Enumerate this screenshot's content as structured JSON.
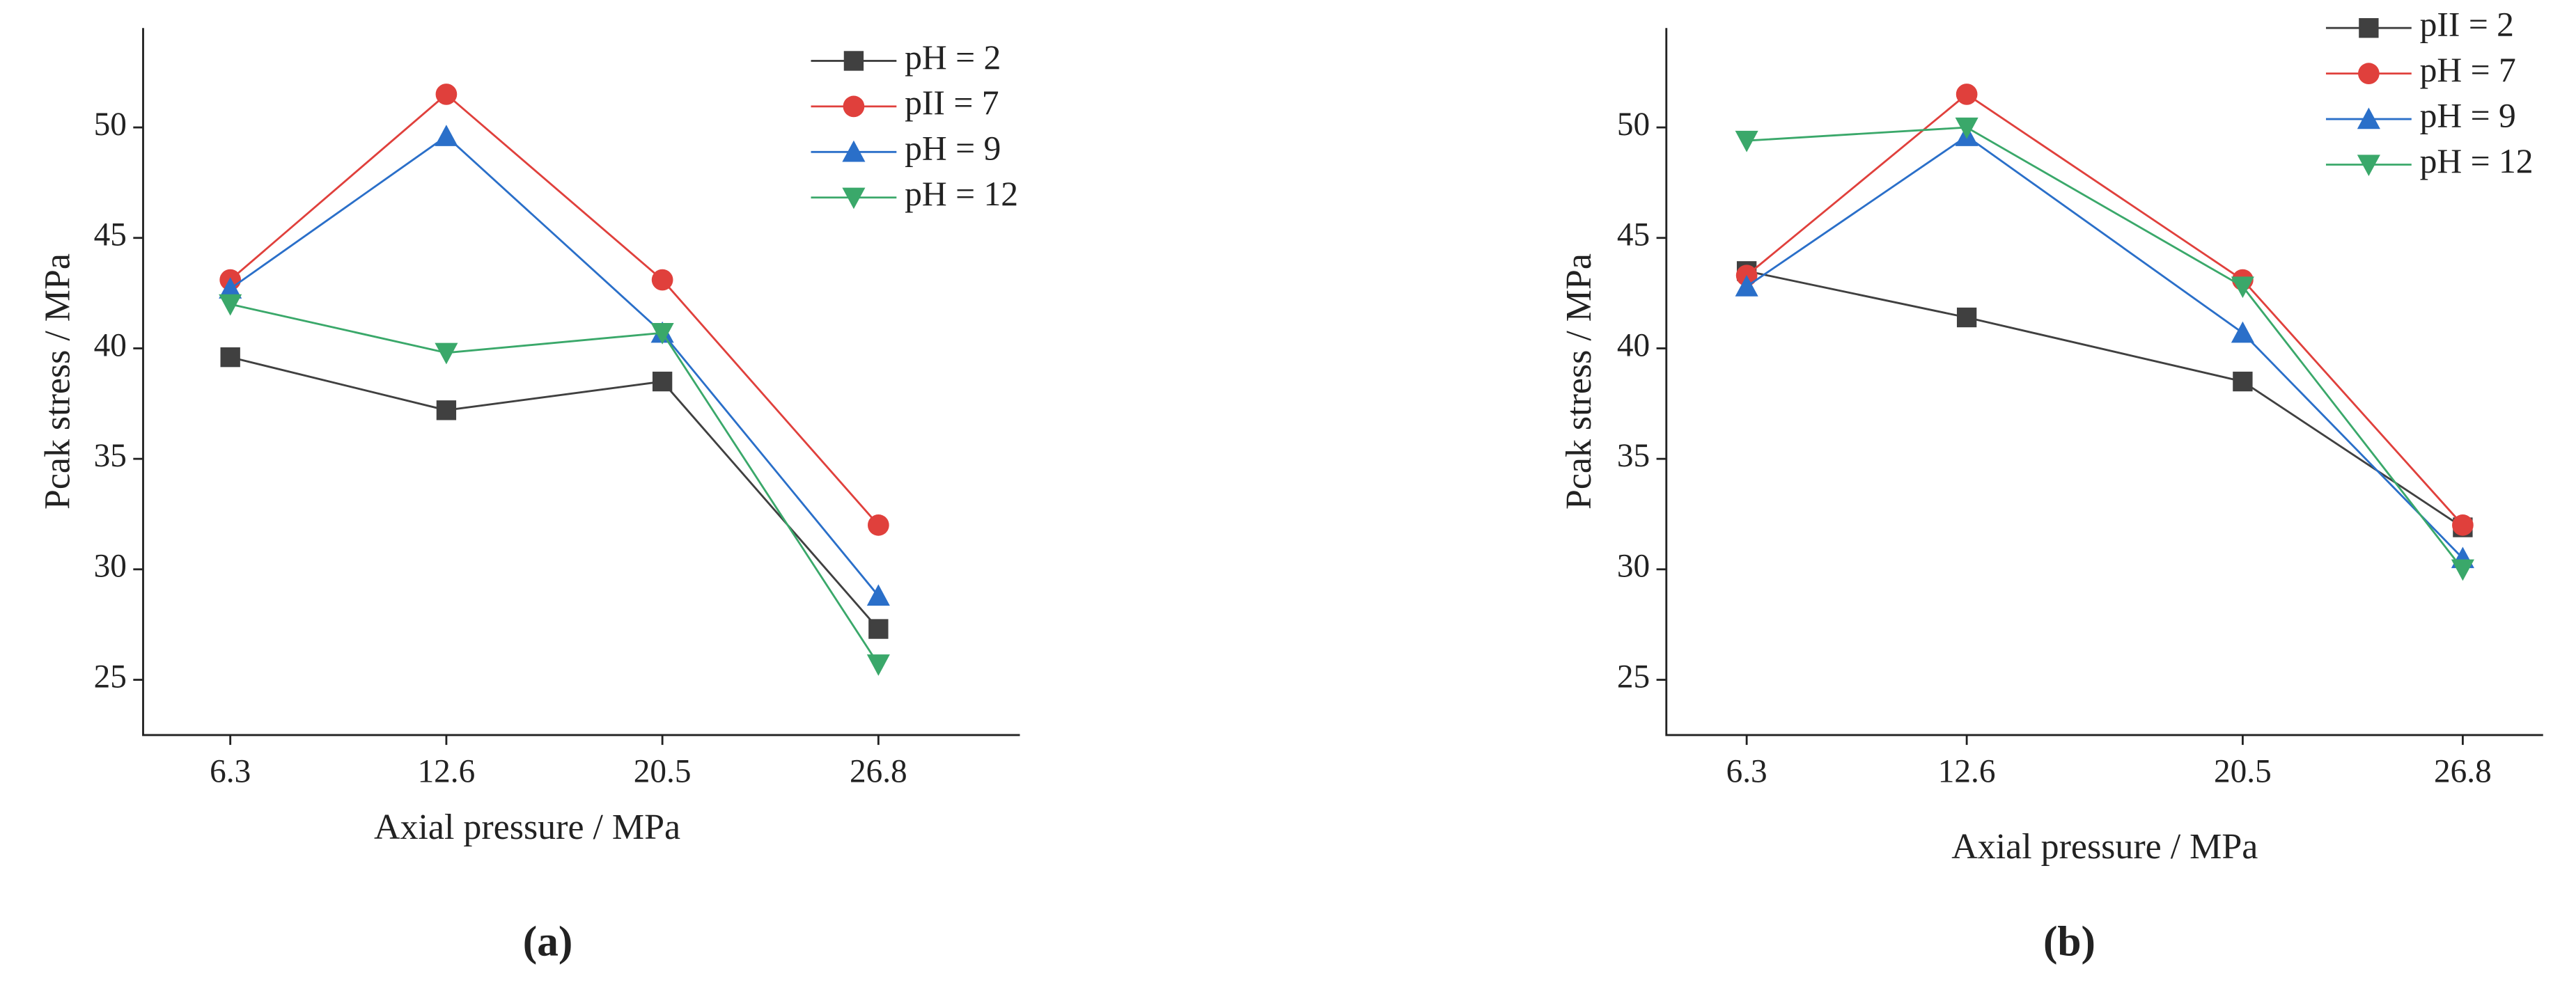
{
  "chart_data": [
    {
      "type": "line",
      "caption": "(a)",
      "x_label": "Axial pressure / MPa",
      "y_label": "Pcak stress / MPa",
      "categories": [
        "6.3",
        "12.6",
        "20.5",
        "26.8"
      ],
      "ylim": [
        22.5,
        54.5
      ],
      "yticks": [
        25,
        30,
        35,
        40,
        45,
        50
      ],
      "legend": "upper right",
      "series": [
        {
          "name": "pH = 2",
          "color": "#404040",
          "marker": "square",
          "values": [
            39.6,
            37.2,
            38.5,
            27.3
          ]
        },
        {
          "name": "pII = 7",
          "color": "#e0403c",
          "marker": "circle",
          "values": [
            43.1,
            51.5,
            43.1,
            32.0
          ]
        },
        {
          "name": "pH = 9",
          "color": "#2a6fc9",
          "marker": "triangle-up",
          "values": [
            42.7,
            49.6,
            40.7,
            28.8
          ]
        },
        {
          "name": "pH = 12",
          "color": "#3aa86a",
          "marker": "triangle-down",
          "values": [
            42.0,
            39.8,
            40.7,
            25.7
          ]
        }
      ]
    },
    {
      "type": "line",
      "caption": "(b)",
      "x_label": "Axial pressure / MPa",
      "y_label": "Pcak stress / MPa",
      "x": [
        6.3,
        12.6,
        20.5,
        26.8
      ],
      "xlim": [
        4.0,
        29.1
      ],
      "xticks": [
        6.3,
        12.6,
        20.5,
        26.8
      ],
      "ylim": [
        22.5,
        54.5
      ],
      "yticks": [
        25,
        30,
        35,
        40,
        45,
        50
      ],
      "legend": "upper right",
      "series": [
        {
          "name": "pII = 2",
          "color": "#404040",
          "marker": "square",
          "values": [
            43.5,
            41.4,
            38.5,
            31.9
          ]
        },
        {
          "name": "pH = 7",
          "color": "#e0403c",
          "marker": "circle",
          "values": [
            43.3,
            51.5,
            43.1,
            32.0
          ]
        },
        {
          "name": "pH = 9",
          "color": "#2a6fc9",
          "marker": "triangle-up",
          "values": [
            42.8,
            49.6,
            40.7,
            30.5
          ]
        },
        {
          "name": "pH = 12",
          "color": "#3aa86a",
          "marker": "triangle-down",
          "values": [
            49.4,
            50.0,
            42.8,
            30.0
          ]
        }
      ]
    }
  ]
}
